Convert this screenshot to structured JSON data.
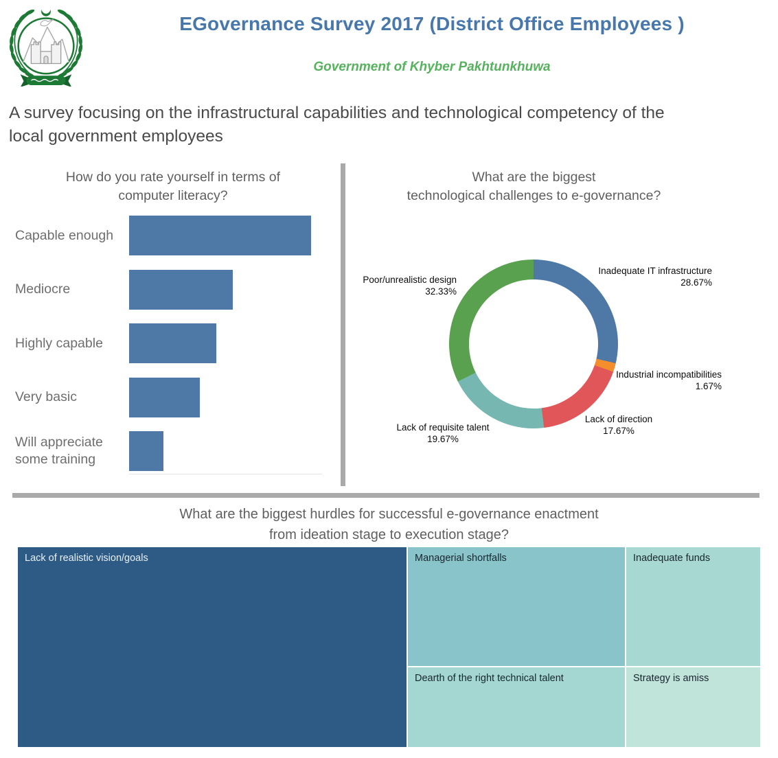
{
  "theme": {
    "title_blue": "#4878ab",
    "subtitle_green": "#56b25c",
    "divider_gray": "#a9a9a9",
    "chart_title_gray": "#5f5f5f",
    "bar_blue": "#4e79a7"
  },
  "header": {
    "title": "EGovernance Survey 2017 (District Office Employees )",
    "subtitle": "Government of Khyber Pakhtunkhuwa",
    "logo": "government-of-khyber-pakhtunkhwa-emblem"
  },
  "intro": {
    "text": "A survey focusing on the infrastructural capabilities and technological competency of the local government employees",
    "lines": [
      "A survey focusing on the infrastructural capabilities and technological competency of the",
      "local government employees"
    ]
  },
  "chart_data": [
    {
      "id": "computer-literacy-bars",
      "type": "bar",
      "orientation": "horizontal",
      "title": "How do you rate yourself in terms of computer literacy?",
      "title_lines": [
        "How do you rate yourself in terms of",
        "computer literacy?"
      ],
      "categories": [
        "Capable enough",
        "Mediocre",
        "Highly capable",
        "Very basic",
        "Will appreciate some training"
      ],
      "values_pct_of_max_estimated": [
        100,
        57,
        48,
        39,
        19
      ],
      "value_labels_shown": false,
      "axis_shown": false,
      "bar_color": "#4e79a7"
    },
    {
      "id": "tech-challenges-donut",
      "type": "pie",
      "subtype": "donut",
      "title": "What are the biggest technological challenges to e-governance?",
      "title_lines": [
        "What are the biggest",
        "technological challenges to e-governance?"
      ],
      "start_angle_deg": 0,
      "direction": "clockwise",
      "segments": [
        {
          "label": "Inadequate IT infrastructure",
          "pct": 28.67,
          "pct_label": "28.67%",
          "color": "#4e79a7"
        },
        {
          "label": "Industrial incompatibilities",
          "pct": 1.67,
          "pct_label": "1.67%",
          "color": "#f28e2b"
        },
        {
          "label": "Lack of direction",
          "pct": 17.67,
          "pct_label": "17.67%",
          "color": "#e15759"
        },
        {
          "label": "Lack of requisite talent",
          "pct": 19.67,
          "pct_label": "19.67%",
          "color": "#76b7b2"
        },
        {
          "label": "Poor/unrealistic design",
          "pct": 32.33,
          "pct_label": "32.33%",
          "color": "#59a14f"
        }
      ]
    },
    {
      "id": "hurdles-treemap",
      "type": "treemap",
      "title": "What are the biggest hurdles for successful e-governance enactment from ideation stage to execution stage?",
      "title_lines": [
        "What are the biggest hurdles for successful e-governance enactment",
        "from ideation stage to execution stage?"
      ],
      "value_labels_shown": false,
      "cells": [
        {
          "label": "Lack of realistic vision/goals",
          "area_pct_estimated": 52,
          "color": "#2e5b85",
          "text_color": "#e9f1f8"
        },
        {
          "label": "Managerial shortfalls",
          "area_pct_estimated": 17,
          "color": "#89c4cb",
          "text_color": "#18262e"
        },
        {
          "label": "Inadequate funds",
          "area_pct_estimated": 11,
          "color": "#a8d8d2",
          "text_color": "#18262e"
        },
        {
          "label": "Dearth of the right technical talent",
          "area_pct_estimated": 12,
          "color": "#a4d7d1",
          "text_color": "#18262e"
        },
        {
          "label": "Strategy is amiss",
          "area_pct_estimated": 8,
          "color": "#c0e3da",
          "text_color": "#18262e"
        }
      ]
    }
  ]
}
